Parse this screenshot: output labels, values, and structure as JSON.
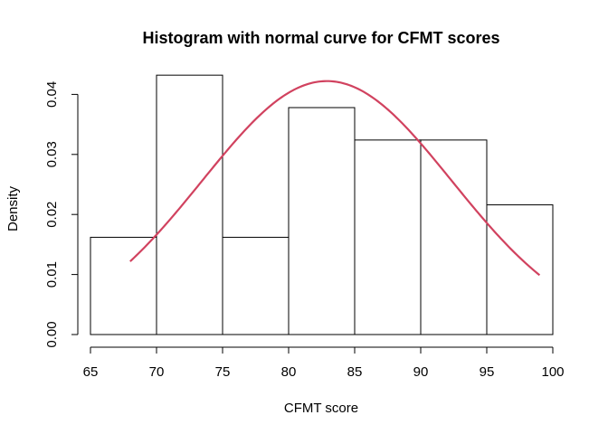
{
  "chart_data": {
    "type": "bar",
    "title": "Histogram with normal curve for CFMT scores",
    "xlabel": "CFMT score",
    "ylabel": "Density",
    "bins": [
      {
        "start": 65,
        "end": 70,
        "density": 0.0162
      },
      {
        "start": 70,
        "end": 75,
        "density": 0.0432
      },
      {
        "start": 75,
        "end": 80,
        "density": 0.0162
      },
      {
        "start": 80,
        "end": 85,
        "density": 0.0378
      },
      {
        "start": 85,
        "end": 90,
        "density": 0.0324
      },
      {
        "start": 90,
        "end": 95,
        "density": 0.0324
      },
      {
        "start": 95,
        "end": 100,
        "density": 0.0216
      }
    ],
    "xlim": [
      65,
      100
    ],
    "ylim": [
      0,
      0.045
    ],
    "xticks": [
      "65",
      "70",
      "75",
      "80",
      "85",
      "90",
      "95",
      "100"
    ],
    "yticks": [
      "0.00",
      "0.01",
      "0.02",
      "0.03",
      "0.04"
    ],
    "normal_curve": {
      "mean": 82.9,
      "sd": 9.45,
      "x_from": 68,
      "x_to": 99,
      "color": "#d1425f"
    },
    "grid": false
  }
}
